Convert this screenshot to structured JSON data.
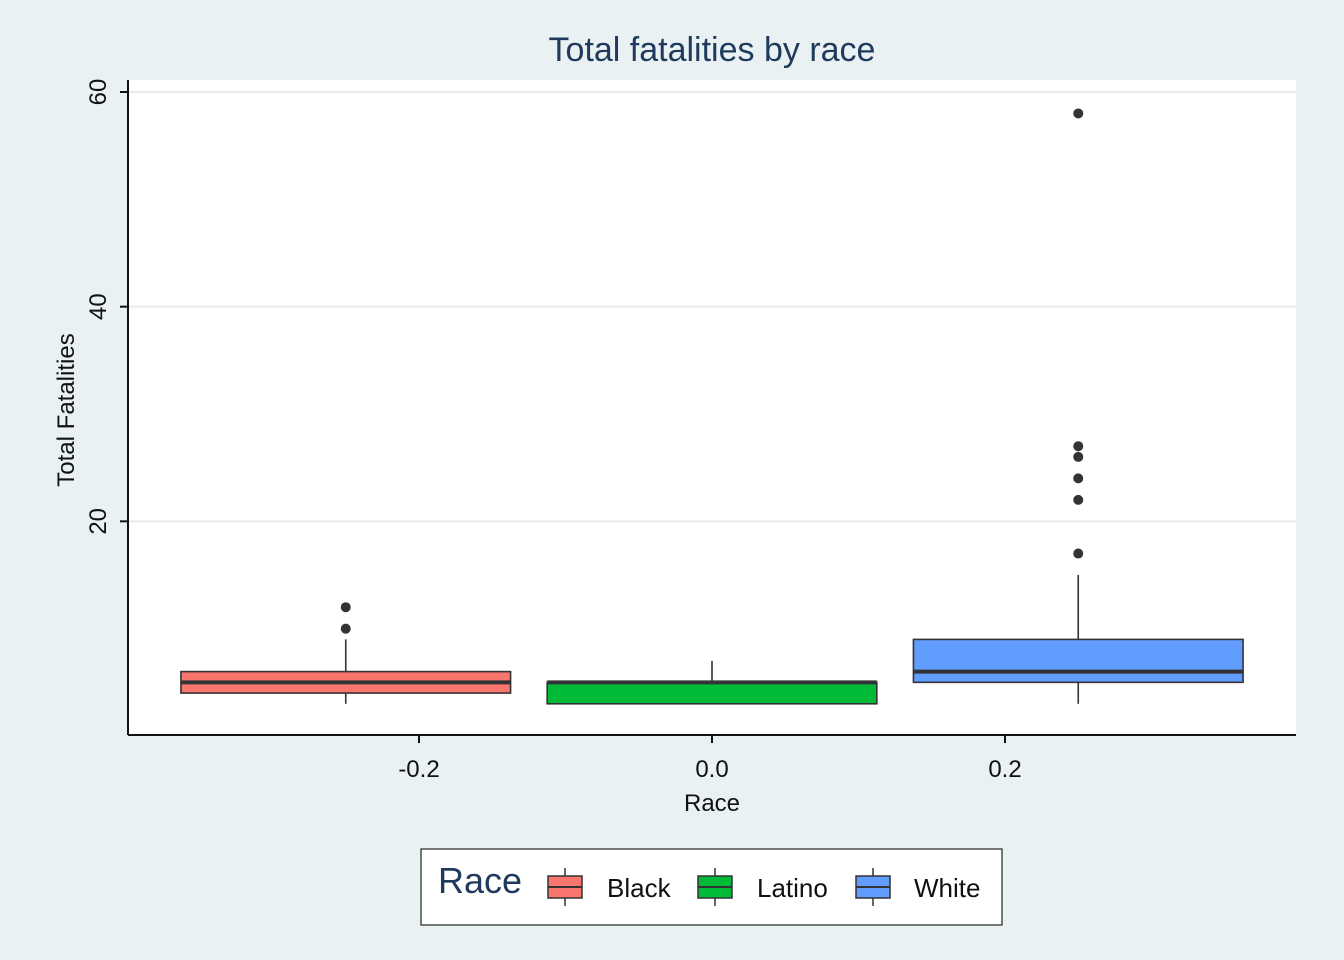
{
  "chart_data": {
    "type": "boxplot",
    "title": "Total fatalities by race",
    "xlabel": "Race",
    "ylabel": "Total Fatalities",
    "xlim": [
      -0.4,
      0.4
    ],
    "ylim": [
      0,
      60
    ],
    "x_ticks": [
      {
        "value": -0.2,
        "label": "-0.2"
      },
      {
        "value": 0.0,
        "label": "0.0"
      },
      {
        "value": 0.2,
        "label": "0.2"
      }
    ],
    "y_ticks": [
      {
        "value": 20,
        "label": "20"
      },
      {
        "value": 40,
        "label": "40"
      },
      {
        "value": 60,
        "label": "60"
      }
    ],
    "grid": "horizontal",
    "legend": {
      "title": "Race",
      "position": "bottom"
    },
    "series": [
      {
        "name": "Black",
        "color": "#f8766d",
        "x_center": -0.25,
        "whisker_low": 3,
        "q1": 4,
        "median": 5,
        "q3": 6,
        "whisker_high": 9,
        "outliers": [
          10,
          12
        ]
      },
      {
        "name": "Latino",
        "color": "#00ba38",
        "x_center": 0.0,
        "whisker_low": 3,
        "q1": 3,
        "median": 5,
        "q3": 5,
        "whisker_high": 7,
        "outliers": []
      },
      {
        "name": "White",
        "color": "#619cff",
        "x_center": 0.25,
        "whisker_low": 3,
        "q1": 5,
        "median": 6,
        "q3": 9,
        "whisker_high": 15,
        "outliers": [
          17,
          22,
          24,
          26,
          27,
          58
        ]
      }
    ]
  }
}
